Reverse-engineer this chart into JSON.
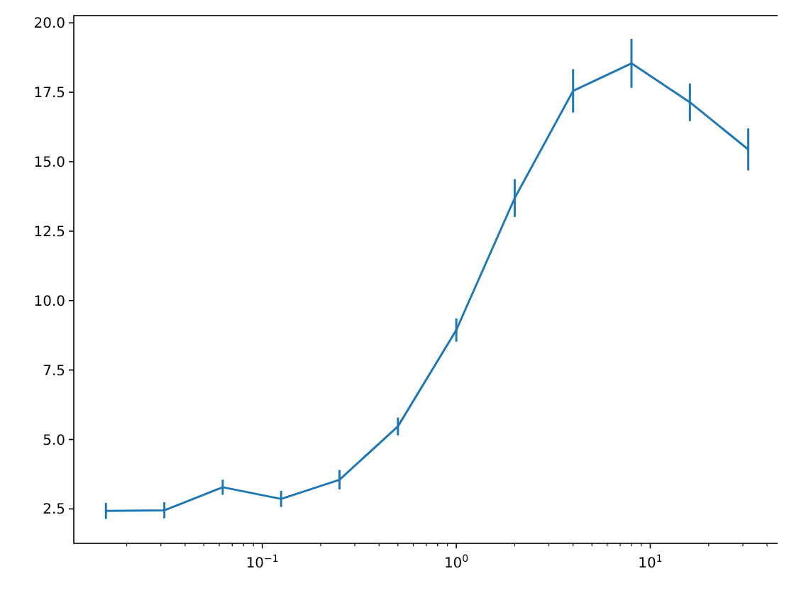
{
  "chart_data": {
    "type": "line",
    "log": "x",
    "grid": false,
    "marker": "none",
    "line_style": "solid",
    "x": [
      0.015625,
      0.03125,
      0.0625,
      0.125,
      0.25,
      0.5,
      1,
      2,
      4,
      8,
      16,
      32
    ],
    "series": [
      {
        "color": "#1f77b4",
        "values": [
          2.43,
          2.45,
          3.28,
          2.86,
          3.55,
          5.47,
          8.94,
          13.69,
          17.55,
          18.54,
          17.14,
          15.44
        ],
        "errors": [
          0.29,
          0.29,
          0.27,
          0.29,
          0.35,
          0.32,
          0.42,
          0.68,
          0.78,
          0.88,
          0.68,
          0.76
        ]
      }
    ],
    "xlim": [
      0.01067,
      46.9
    ],
    "xticks": [
      {
        "value": 0.02,
        "label": null
      },
      {
        "value": 0.03,
        "label": null
      },
      {
        "value": 0.04,
        "label": null
      },
      {
        "value": 0.05,
        "label": null
      },
      {
        "value": 0.06,
        "label": null
      },
      {
        "value": 0.07,
        "label": null
      },
      {
        "value": 0.08,
        "label": null
      },
      {
        "value": 0.09,
        "label": null
      },
      {
        "value": 0.1,
        "label": "10$^{−1}$"
      },
      {
        "value": 0.2,
        "label": null
      },
      {
        "value": 0.3,
        "label": null
      },
      {
        "value": 0.4,
        "label": null
      },
      {
        "value": 0.5,
        "label": null
      },
      {
        "value": 0.6,
        "label": null
      },
      {
        "value": 0.7,
        "label": null
      },
      {
        "value": 0.8,
        "label": null
      },
      {
        "value": 0.9,
        "label": null
      },
      {
        "value": 1,
        "label": "10$^{0}$"
      },
      {
        "value": 2,
        "label": null
      },
      {
        "value": 3,
        "label": null
      },
      {
        "value": 4,
        "label": null
      },
      {
        "value": 5,
        "label": null
      },
      {
        "value": 6,
        "label": null
      },
      {
        "value": 7,
        "label": null
      },
      {
        "value": 8,
        "label": null
      },
      {
        "value": 9,
        "label": null
      },
      {
        "value": 10,
        "label": "10$^{1}$"
      },
      {
        "value": 20,
        "label": null
      },
      {
        "value": 30,
        "label": null
      },
      {
        "value": 40,
        "label": null
      }
    ],
    "ylim": [
      1.26,
      20.26
    ],
    "yticks": [
      {
        "value": 2.5,
        "label": "2.5"
      },
      {
        "value": 5,
        "label": "5.0"
      },
      {
        "value": 7.5,
        "label": "7.5"
      },
      {
        "value": 10,
        "label": "10.0"
      },
      {
        "value": 12.5,
        "label": "12.5"
      },
      {
        "value": 15,
        "label": "15.0"
      },
      {
        "value": 17.5,
        "label": "17.5"
      },
      {
        "value": 20,
        "label": "20.0"
      }
    ]
  }
}
